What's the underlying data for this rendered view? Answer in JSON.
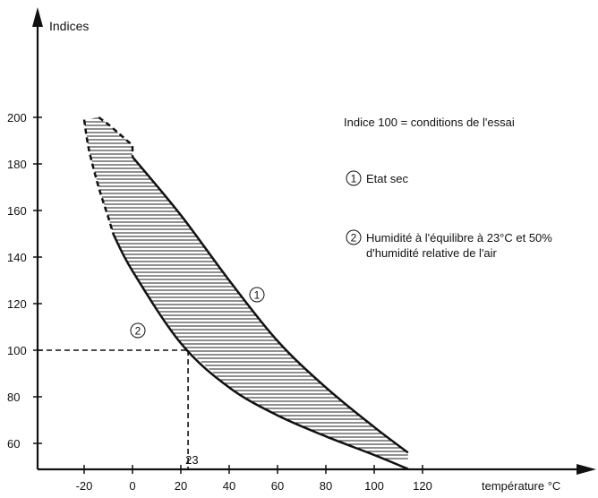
{
  "chart_data": {
    "type": "line",
    "ylabel": "Indices",
    "xlabel": "température °C",
    "xlim": [
      -20,
      120
    ],
    "ylim": [
      50,
      200
    ],
    "x_ticks": [
      -20,
      0,
      20,
      40,
      60,
      80,
      100,
      120
    ],
    "y_ticks": [
      60,
      80,
      100,
      120,
      140,
      160,
      180,
      200
    ],
    "grid": false,
    "series": [
      {
        "name": "1",
        "solid_points": [
          [
            0,
            183
          ],
          [
            20,
            158
          ],
          [
            40,
            130
          ],
          [
            60,
            104
          ],
          [
            80,
            84
          ],
          [
            100,
            67
          ],
          [
            114,
            56
          ]
        ],
        "dashed_points": [
          [
            -14,
            200
          ],
          [
            -10,
            197
          ],
          [
            0,
            188
          ],
          [
            0,
            183
          ]
        ]
      },
      {
        "name": "2",
        "solid_points": [
          [
            -8,
            150
          ],
          [
            0,
            134
          ],
          [
            20,
            103
          ],
          [
            40,
            84
          ],
          [
            60,
            72
          ],
          [
            80,
            63
          ],
          [
            100,
            55
          ],
          [
            114,
            49
          ]
        ],
        "dashed_points": [
          [
            -20,
            199
          ],
          [
            -18,
            186
          ],
          [
            -14,
            170
          ],
          [
            -10,
            157
          ],
          [
            -8,
            150
          ]
        ]
      }
    ],
    "reference": {
      "x": 23,
      "y": 100,
      "x_label": "23"
    },
    "annotations": {
      "note": "Indice 100 = conditions de l'essai",
      "legend_1_marker": "1",
      "legend_1_text": "Etat sec",
      "legend_2_marker": "2",
      "legend_2_line1": "Humidité à l'équilibre à 23°C et 50%",
      "legend_2_line2": "d'humidité relative de l'air",
      "curve_1_marker": "1",
      "curve_2_marker": "2"
    }
  }
}
